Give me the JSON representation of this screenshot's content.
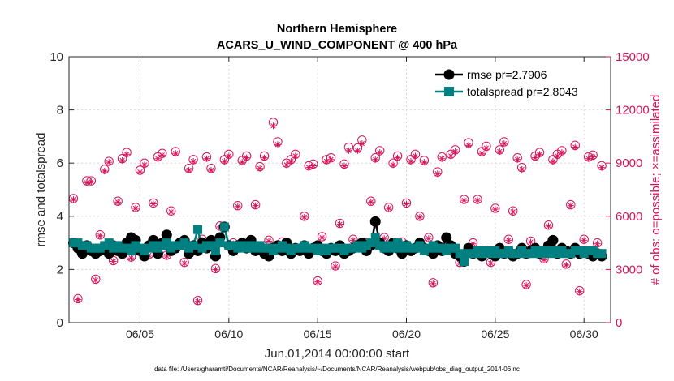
{
  "chart_data": {
    "type": "scatter",
    "title_line1": "Northern Hemisphere",
    "title_line2": "ACARS_U_WIND_COMPONENT @ 400 hPa",
    "xlabel": "Jun.01,2014 00:00:00 start",
    "ylabel_left": "rmse and totalspread",
    "ylabel_right": "# of obs: o=possible; ×=assimilated",
    "footer": "data file: /Users/gharamti/Documents/NCAR/Reanalysis/~/Documents/NCAR/Reanalysis/webpub/obs_diag_output_2014-06.nc",
    "x_range": [
      1,
      31.5
    ],
    "y_left_range": [
      0,
      10
    ],
    "y_right_range": [
      0,
      15000
    ],
    "x_ticks": [
      5,
      10,
      15,
      20,
      25,
      30
    ],
    "x_tick_labels": [
      "06/05",
      "06/10",
      "06/15",
      "06/20",
      "06/25",
      "06/30"
    ],
    "y_left_ticks": [
      0,
      2,
      4,
      6,
      8,
      10
    ],
    "y_left_tick_labels": [
      "0",
      "2",
      "4",
      "6",
      "8",
      "10"
    ],
    "y_right_ticks": [
      0,
      3000,
      6000,
      9000,
      12000,
      15000
    ],
    "y_right_tick_labels": [
      "0",
      "3000",
      "6000",
      "9000",
      "12000",
      "15000"
    ],
    "legend_position": "top-right",
    "colors": {
      "rmse": "#000000",
      "spread": "#008080",
      "obs": "#d4145a"
    },
    "series": [
      {
        "name": "rmse pr=2.7906",
        "axis": "left",
        "x": [
          1.25,
          1.5,
          1.75,
          2,
          2.25,
          2.5,
          2.75,
          3,
          3.25,
          3.5,
          3.75,
          4,
          4.25,
          4.5,
          4.75,
          5,
          5.25,
          5.5,
          5.75,
          6,
          6.25,
          6.5,
          6.75,
          7,
          7.25,
          7.5,
          7.75,
          8,
          8.25,
          8.5,
          8.75,
          9,
          9.25,
          9.5,
          9.75,
          10,
          10.25,
          10.5,
          10.75,
          11,
          11.25,
          11.5,
          11.75,
          12,
          12.25,
          12.5,
          12.75,
          13,
          13.25,
          13.5,
          13.75,
          14,
          14.25,
          14.5,
          14.75,
          15,
          15.25,
          15.5,
          15.75,
          16,
          16.25,
          16.5,
          16.75,
          17,
          17.25,
          17.5,
          17.75,
          18,
          18.25,
          18.5,
          18.75,
          19,
          19.25,
          19.5,
          19.75,
          20,
          20.25,
          20.5,
          20.75,
          21,
          21.25,
          21.5,
          21.75,
          22,
          22.25,
          22.5,
          22.75,
          23,
          23.25,
          23.5,
          23.75,
          24,
          24.25,
          24.5,
          24.75,
          25,
          25.25,
          25.5,
          25.75,
          26,
          26.25,
          26.5,
          26.75,
          27,
          27.25,
          27.5,
          27.75,
          28,
          28.25,
          28.5,
          28.75,
          29,
          29.25,
          29.5,
          29.75,
          30,
          30.25,
          30.5,
          30.75,
          31
        ],
        "y": [
          3.0,
          2.8,
          2.6,
          2.9,
          2.7,
          2.6,
          2.7,
          2.8,
          2.6,
          2.9,
          2.7,
          2.6,
          3.0,
          3.2,
          3.1,
          2.7,
          2.5,
          2.9,
          3.1,
          2.6,
          3.0,
          3.3,
          2.7,
          2.8,
          3.0,
          3.1,
          2.6,
          2.9,
          2.7,
          3.0,
          2.8,
          3.1,
          2.5,
          3.2,
          3.6,
          2.9,
          2.7,
          2.9,
          3.0,
          2.8,
          3.1,
          2.7,
          2.8,
          2.6,
          2.5,
          2.8,
          2.9,
          2.7,
          3.0,
          2.6,
          2.8,
          2.7,
          2.9,
          2.6,
          2.8,
          2.9,
          2.7,
          2.6,
          2.8,
          2.7,
          2.9,
          2.6,
          2.7,
          2.8,
          2.9,
          3.0,
          2.7,
          2.9,
          3.8,
          3.0,
          2.8,
          2.7,
          3.0,
          2.8,
          2.6,
          2.9,
          2.7,
          2.8,
          3.0,
          2.8,
          2.7,
          2.6,
          2.9,
          2.7,
          3.2,
          2.9,
          2.6,
          2.5,
          2.3,
          2.8,
          2.6,
          2.7,
          2.5,
          2.7,
          2.6,
          2.5,
          2.8,
          2.6,
          2.7,
          2.5,
          2.6,
          2.8,
          2.6,
          2.7,
          2.8,
          2.6,
          2.7,
          2.9,
          3.1,
          2.6,
          2.8,
          2.7,
          2.6,
          2.8,
          2.6,
          2.7,
          2.6,
          2.5,
          2.6,
          2.5
        ]
      },
      {
        "name": "totalspread pr=2.8043",
        "axis": "left",
        "x": [
          1.25,
          1.5,
          1.75,
          2,
          2.25,
          2.5,
          2.75,
          3,
          3.25,
          3.5,
          3.75,
          4,
          4.25,
          4.5,
          4.75,
          5,
          5.25,
          5.5,
          5.75,
          6,
          6.25,
          6.5,
          6.75,
          7,
          7.25,
          7.5,
          7.75,
          8,
          8.25,
          8.5,
          8.75,
          9,
          9.25,
          9.5,
          9.75,
          10,
          10.25,
          10.5,
          10.75,
          11,
          11.25,
          11.5,
          11.75,
          12,
          12.25,
          12.5,
          12.75,
          13,
          13.25,
          13.5,
          13.75,
          14,
          14.25,
          14.5,
          14.75,
          15,
          15.25,
          15.5,
          15.75,
          16,
          16.25,
          16.5,
          16.75,
          17,
          17.25,
          17.5,
          17.75,
          18,
          18.25,
          18.5,
          18.75,
          19,
          19.25,
          19.5,
          19.75,
          20,
          20.25,
          20.5,
          20.75,
          21,
          21.25,
          21.5,
          21.75,
          22,
          22.25,
          22.5,
          22.75,
          23,
          23.25,
          23.5,
          23.75,
          24,
          24.25,
          24.5,
          24.75,
          25,
          25.25,
          25.5,
          25.75,
          26,
          26.25,
          26.5,
          26.75,
          27,
          27.25,
          27.5,
          27.75,
          28,
          28.25,
          28.5,
          28.75,
          29,
          29.25,
          29.5,
          29.75,
          30,
          30.25,
          30.5,
          30.75,
          31
        ],
        "y": [
          3.0,
          3.0,
          2.9,
          2.9,
          2.8,
          2.8,
          2.8,
          2.9,
          3.0,
          2.8,
          2.9,
          2.8,
          2.8,
          2.7,
          2.9,
          2.8,
          2.7,
          2.8,
          2.9,
          2.8,
          2.9,
          3.0,
          2.8,
          2.9,
          2.9,
          3.0,
          2.8,
          2.9,
          3.5,
          2.8,
          2.9,
          2.9,
          2.7,
          3.0,
          3.6,
          2.9,
          2.9,
          2.8,
          2.9,
          2.8,
          2.9,
          2.8,
          2.9,
          2.8,
          2.8,
          2.7,
          2.8,
          2.9,
          2.8,
          2.7,
          2.8,
          2.8,
          2.9,
          2.8,
          2.8,
          2.7,
          2.8,
          2.7,
          2.8,
          2.8,
          2.8,
          2.7,
          2.8,
          2.8,
          2.9,
          2.8,
          2.9,
          3.0,
          3.2,
          2.9,
          2.8,
          2.9,
          2.8,
          3.0,
          2.8,
          2.9,
          2.8,
          2.8,
          2.9,
          2.7,
          2.8,
          2.9,
          2.8,
          2.8,
          2.7,
          2.8,
          2.8,
          2.6,
          2.3,
          2.6,
          2.6,
          2.7,
          2.6,
          2.7,
          2.6,
          2.7,
          2.6,
          2.6,
          2.7,
          2.6,
          2.6,
          2.7,
          2.6,
          2.6,
          2.7,
          2.6,
          2.7,
          2.6,
          2.7,
          2.6,
          2.7,
          2.6,
          2.6,
          2.7,
          2.7,
          2.6,
          2.7,
          2.7,
          2.6,
          2.6
        ]
      },
      {
        "name": "obs possible",
        "axis": "right",
        "marker": "circle",
        "x": [
          1.25,
          1.5,
          1.75,
          2,
          2.25,
          2.5,
          2.75,
          3,
          3.25,
          3.5,
          3.75,
          4,
          4.25,
          4.5,
          4.75,
          5,
          5.25,
          5.5,
          5.75,
          6,
          6.25,
          6.5,
          6.75,
          7,
          7.25,
          7.5,
          7.75,
          8,
          8.25,
          8.5,
          8.75,
          9,
          9.25,
          9.5,
          9.75,
          10,
          10.25,
          10.5,
          10.75,
          11,
          11.25,
          11.5,
          11.75,
          12,
          12.25,
          12.5,
          12.75,
          13,
          13.25,
          13.5,
          13.75,
          14,
          14.25,
          14.5,
          14.75,
          15,
          15.25,
          15.5,
          15.75,
          16,
          16.25,
          16.5,
          16.75,
          17,
          17.25,
          17.5,
          17.75,
          18,
          18.25,
          18.5,
          18.75,
          19,
          19.25,
          19.5,
          19.75,
          20,
          20.25,
          20.5,
          20.75,
          21,
          21.25,
          21.5,
          21.75,
          22,
          22.25,
          22.5,
          22.75,
          23,
          23.25,
          23.5,
          23.75,
          24,
          24.25,
          24.5,
          24.75,
          25,
          25.25,
          25.5,
          25.75,
          26,
          26.25,
          26.5,
          26.75,
          27,
          27.25,
          27.5,
          27.75,
          28,
          28.25,
          28.5,
          28.75,
          29,
          29.25,
          29.5,
          29.75,
          30,
          30.25,
          30.5,
          30.75,
          31
        ],
        "y": [
          7000,
          1350,
          4200,
          8000,
          8000,
          2450,
          4950,
          8650,
          9100,
          3500,
          6850,
          9250,
          9600,
          3700,
          6500,
          8600,
          9000,
          3850,
          6750,
          9350,
          9550,
          3800,
          6300,
          9650,
          4400,
          3400,
          8700,
          9200,
          1250,
          4700,
          9350,
          8700,
          3050,
          5450,
          9200,
          9500,
          4500,
          6600,
          9150,
          9400,
          4300,
          6650,
          8800,
          9400,
          4650,
          11300,
          10200,
          4550,
          9000,
          9200,
          9500,
          4050,
          6000,
          8850,
          8950,
          2350,
          4850,
          9200,
          9300,
          3200,
          5600,
          8950,
          9900,
          4700,
          9850,
          10300,
          4500,
          6850,
          9300,
          9700,
          4800,
          6500,
          9000,
          9400,
          4550,
          6750,
          9200,
          9500,
          6000,
          9150,
          4800,
          2250,
          8500,
          9350,
          4400,
          9500,
          9750,
          3400,
          6950,
          10150,
          4500,
          6950,
          9650,
          9950,
          3400,
          6450,
          9750,
          10200,
          4700,
          6300,
          9300,
          8750,
          2150,
          4600,
          9400,
          9600,
          3600,
          5500,
          9200,
          9500,
          9700,
          3300,
          6650,
          10000,
          1800,
          4700,
          9350,
          9450,
          4500,
          8850
        ]
      },
      {
        "name": "obs assimilated",
        "axis": "right",
        "marker": "asterisk",
        "x": [
          1.25,
          1.5,
          1.75,
          2,
          2.25,
          2.5,
          2.75,
          3,
          3.25,
          3.5,
          3.75,
          4,
          4.25,
          4.5,
          4.75,
          5,
          5.25,
          5.5,
          5.75,
          6,
          6.25,
          6.5,
          6.75,
          7,
          7.25,
          7.5,
          7.75,
          8,
          8.25,
          8.5,
          8.75,
          9,
          9.25,
          9.5,
          9.75,
          10,
          10.25,
          10.5,
          10.75,
          11,
          11.25,
          11.5,
          11.75,
          12,
          12.25,
          12.5,
          12.75,
          13,
          13.25,
          13.5,
          13.75,
          14,
          14.25,
          14.5,
          14.75,
          15,
          15.25,
          15.5,
          15.75,
          16,
          16.25,
          16.5,
          16.75,
          17,
          17.25,
          17.5,
          17.75,
          18,
          18.25,
          18.5,
          18.75,
          19,
          19.25,
          19.5,
          19.75,
          20,
          20.25,
          20.5,
          20.75,
          21,
          21.25,
          21.5,
          21.75,
          22,
          22.25,
          22.5,
          22.75,
          23,
          23.25,
          23.5,
          23.75,
          24,
          24.25,
          24.5,
          24.75,
          25,
          25.25,
          25.5,
          25.75,
          26,
          26.25,
          26.5,
          26.75,
          27,
          27.25,
          27.5,
          27.75,
          28,
          28.25,
          28.5,
          28.75,
          29,
          29.25,
          29.5,
          29.75,
          30,
          30.25,
          30.5,
          30.75,
          31
        ],
        "y": [
          6950,
          1300,
          4150,
          7900,
          7950,
          2400,
          4900,
          8550,
          9050,
          3450,
          6800,
          9150,
          9500,
          3650,
          6450,
          8500,
          8900,
          3800,
          6700,
          9250,
          9450,
          3750,
          6250,
          9550,
          4350,
          3350,
          8600,
          9100,
          1200,
          4650,
          9250,
          8600,
          3000,
          5400,
          9100,
          9400,
          4450,
          6550,
          9050,
          9300,
          4250,
          6600,
          8700,
          9300,
          4600,
          11100,
          10050,
          4500,
          8900,
          9100,
          9400,
          4000,
          5950,
          8750,
          8850,
          2300,
          4800,
          9100,
          9200,
          3150,
          5550,
          8850,
          9700,
          4650,
          9700,
          10100,
          4450,
          6800,
          9200,
          9600,
          4750,
          6450,
          8900,
          9300,
          4500,
          6700,
          9100,
          9400,
          5950,
          9050,
          4750,
          2200,
          8400,
          9250,
          4350,
          9400,
          9650,
          3350,
          6900,
          10000,
          4450,
          6900,
          9550,
          9850,
          3350,
          6400,
          9650,
          10100,
          4650,
          6250,
          9200,
          8650,
          2100,
          4550,
          9300,
          9500,
          3550,
          5450,
          9100,
          9400,
          9600,
          3250,
          6600,
          9900,
          1750,
          4650,
          9250,
          9350,
          4450,
          8750
        ]
      }
    ]
  }
}
